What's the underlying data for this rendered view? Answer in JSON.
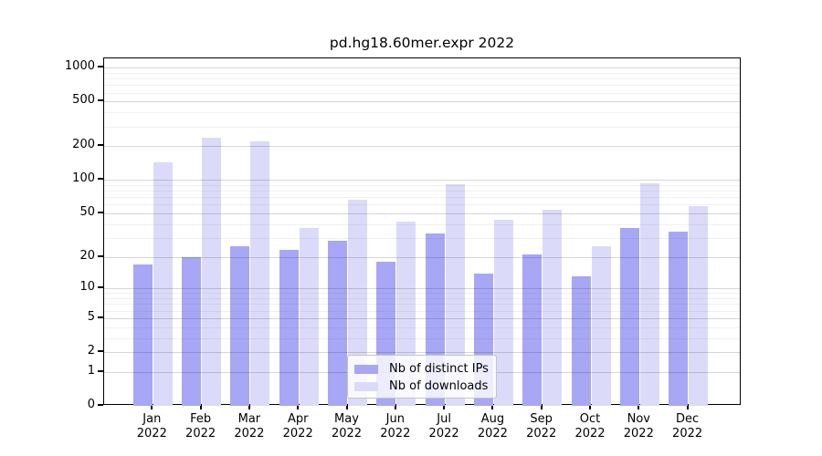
{
  "chart_data": {
    "type": "bar",
    "title": "pd.hg18.60mer.expr 2022",
    "categories": [
      "Jan 2022",
      "Feb 2022",
      "Mar 2022",
      "Apr 2022",
      "May 2022",
      "Jun 2022",
      "Jul 2022",
      "Aug 2022",
      "Sep 2022",
      "Oct 2022",
      "Nov 2022",
      "Dec 2022"
    ],
    "x_tick_labels": [
      {
        "line1": "Jan",
        "line2": "2022"
      },
      {
        "line1": "Feb",
        "line2": "2022"
      },
      {
        "line1": "Mar",
        "line2": "2022"
      },
      {
        "line1": "Apr",
        "line2": "2022"
      },
      {
        "line1": "May",
        "line2": "2022"
      },
      {
        "line1": "Jun",
        "line2": "2022"
      },
      {
        "line1": "Jul",
        "line2": "2022"
      },
      {
        "line1": "Aug",
        "line2": "2022"
      },
      {
        "line1": "Sep",
        "line2": "2022"
      },
      {
        "line1": "Oct",
        "line2": "2022"
      },
      {
        "line1": "Nov",
        "line2": "2022"
      },
      {
        "line1": "Dec",
        "line2": "2022"
      }
    ],
    "series": [
      {
        "name": "Nb of distinct IPs",
        "color": "#a7a7f6",
        "values": [
          17,
          20,
          25,
          23,
          28,
          18,
          33,
          14,
          21,
          13,
          37,
          34
        ]
      },
      {
        "name": "Nb of downloads",
        "color": "#dbdbf9",
        "values": [
          144,
          240,
          220,
          37,
          66,
          42,
          92,
          44,
          54,
          25,
          93,
          58
        ]
      }
    ],
    "ylabel": "",
    "xlabel": "",
    "yaxis": {
      "scale": "log(1+x)",
      "tick_labels": [
        "1000",
        "500",
        "200",
        "100",
        "50",
        "20",
        "10",
        "5",
        "2",
        "1",
        "0"
      ],
      "tick_values": [
        1000,
        500,
        200,
        100,
        50,
        20,
        10,
        5,
        2,
        1,
        0
      ],
      "minor_gridline_values": [
        3,
        4,
        6,
        7,
        8,
        9,
        30,
        40,
        60,
        70,
        80,
        90,
        300,
        400,
        600,
        700,
        800,
        900
      ],
      "ylim_top_value": 1210,
      "ylim_bottom_value": 0
    },
    "grid": true,
    "legend_position": "inside-lower-center"
  },
  "colors": {
    "bar_distinct_ips": "#a7a7f6",
    "bar_downloads": "#dbdbf9",
    "grid_labeled": "rgba(0,0,0,0.16)",
    "grid_minor": "rgba(0,0,0,0.055)",
    "spine": "#000000",
    "background": "#ffffff"
  }
}
